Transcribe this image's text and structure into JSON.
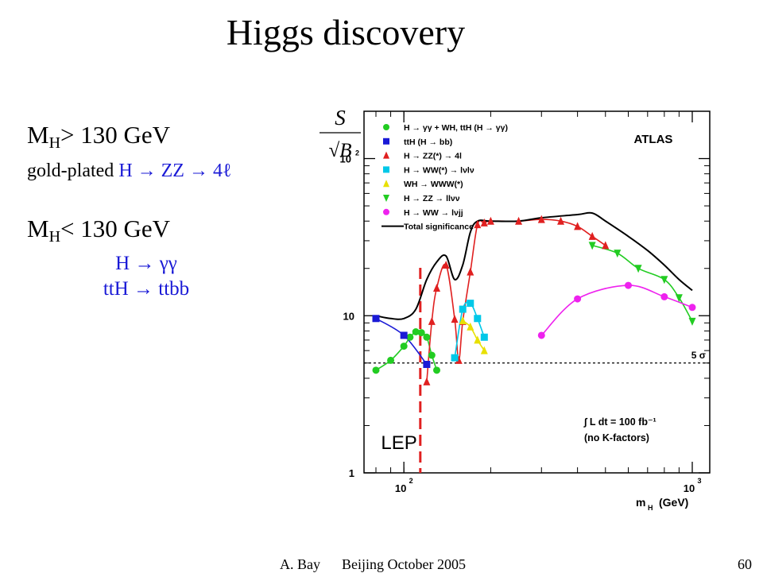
{
  "slide": {
    "title": "Higgs discovery",
    "mh_high": {
      "prefix": "M",
      "sub": "H",
      "text": "> 130 GeV"
    },
    "gold_plated": {
      "prefix": "gold-plated ",
      "channel": "H → ZZ → 4ℓ"
    },
    "mh_low": {
      "prefix": "M",
      "sub": "H",
      "text": "< 130 GeV"
    },
    "low_channels": [
      "H → γγ",
      "ttH → ttbb"
    ],
    "footer": {
      "author": "A. Bay",
      "place": "Beijing October 2005",
      "page": "60"
    }
  },
  "colors": {
    "highlight_text": "#1a1ad6",
    "lep_line": "#e02020"
  },
  "chart_data": {
    "type": "line",
    "title": "",
    "experiment_label": "ATLAS",
    "ylabel": {
      "numerator": "S",
      "denominator": "√B"
    },
    "xlabel": "m",
    "xlabel_sub": "H",
    "xlabel_unit": "(GeV)",
    "x_scale": "log",
    "y_scale": "log",
    "xlim": [
      80,
      1000
    ],
    "ylim": [
      1,
      200
    ],
    "x_ticks": [
      {
        "value": 100,
        "label": "10",
        "exp": "2"
      },
      {
        "value": 1000,
        "label": "10",
        "exp": "3"
      }
    ],
    "y_ticks": [
      {
        "value": 1,
        "label": "1",
        "exp": ""
      },
      {
        "value": 10,
        "label": "10",
        "exp": ""
      },
      {
        "value": 100,
        "label": "10",
        "exp": "2"
      }
    ],
    "threshold": {
      "value": 5,
      "label": "5 σ"
    },
    "lep_limit": {
      "x": 114,
      "label": "LEP"
    },
    "luminosity_note": [
      "∫ L dt = 100 fb⁻¹",
      "(no K-factors)"
    ],
    "legend_position": "top-left",
    "series": [
      {
        "name": "H → γγ + WH, ttH (H → γγ)",
        "color": "#22cc22",
        "marker": "circle",
        "x": [
          80,
          90,
          100,
          105,
          110,
          115,
          120,
          125,
          130
        ],
        "y": [
          4.5,
          5.2,
          6.4,
          7.3,
          7.9,
          7.8,
          7.3,
          5.6,
          4.5
        ]
      },
      {
        "name": "ttH (H → bb)",
        "color": "#1a1ad6",
        "marker": "square",
        "x": [
          80,
          100,
          120
        ],
        "y": [
          9.6,
          7.5,
          4.9
        ]
      },
      {
        "name": "H → ZZ(*) → 4l",
        "color": "#e02020",
        "marker": "triangle-up",
        "x": [
          120,
          125,
          130,
          140,
          150,
          155,
          160,
          170,
          180,
          190,
          200,
          250,
          300,
          350,
          400,
          450,
          500
        ],
        "y": [
          3.8,
          9.2,
          15,
          21,
          9.5,
          5.2,
          9.2,
          19,
          38,
          39,
          40,
          40,
          41,
          40,
          37,
          32,
          28
        ]
      },
      {
        "name": "H → WW(*) → lνlν",
        "color": "#00c8e8",
        "marker": "square",
        "x": [
          150,
          160,
          170,
          180,
          190
        ],
        "y": [
          5.4,
          11,
          12,
          9.6,
          7.3
        ]
      },
      {
        "name": "WH → WWW(*)",
        "color": "#e8e000",
        "marker": "triangle-up",
        "x": [
          160,
          170,
          180,
          190
        ],
        "y": [
          9.3,
          8.5,
          7.0,
          6.0
        ]
      },
      {
        "name": "H → ZZ → llνν",
        "color": "#22cc22",
        "marker": "triangle-down",
        "x": [
          450,
          550,
          650,
          800,
          900,
          1000
        ],
        "y": [
          28,
          25,
          20,
          17,
          13,
          9.2
        ]
      },
      {
        "name": "H → WW → lνjj",
        "color": "#ee22ee",
        "marker": "circle",
        "x": [
          300,
          400,
          600,
          800,
          1000
        ],
        "y": [
          7.5,
          12.8,
          15.6,
          13.2,
          11.3
        ]
      },
      {
        "name": "Total significance",
        "color": "#000000",
        "marker": "none",
        "x": [
          80,
          90,
          100,
          110,
          120,
          130,
          140,
          150,
          160,
          170,
          180,
          200,
          250,
          300,
          400,
          450,
          500,
          600,
          700,
          800,
          900,
          1000
        ],
        "y": [
          10,
          9.6,
          9.6,
          11,
          17,
          22,
          24,
          17,
          21,
          34,
          40,
          40,
          40,
          42,
          44,
          45,
          40,
          32,
          26,
          21,
          17,
          14.5
        ]
      }
    ]
  }
}
